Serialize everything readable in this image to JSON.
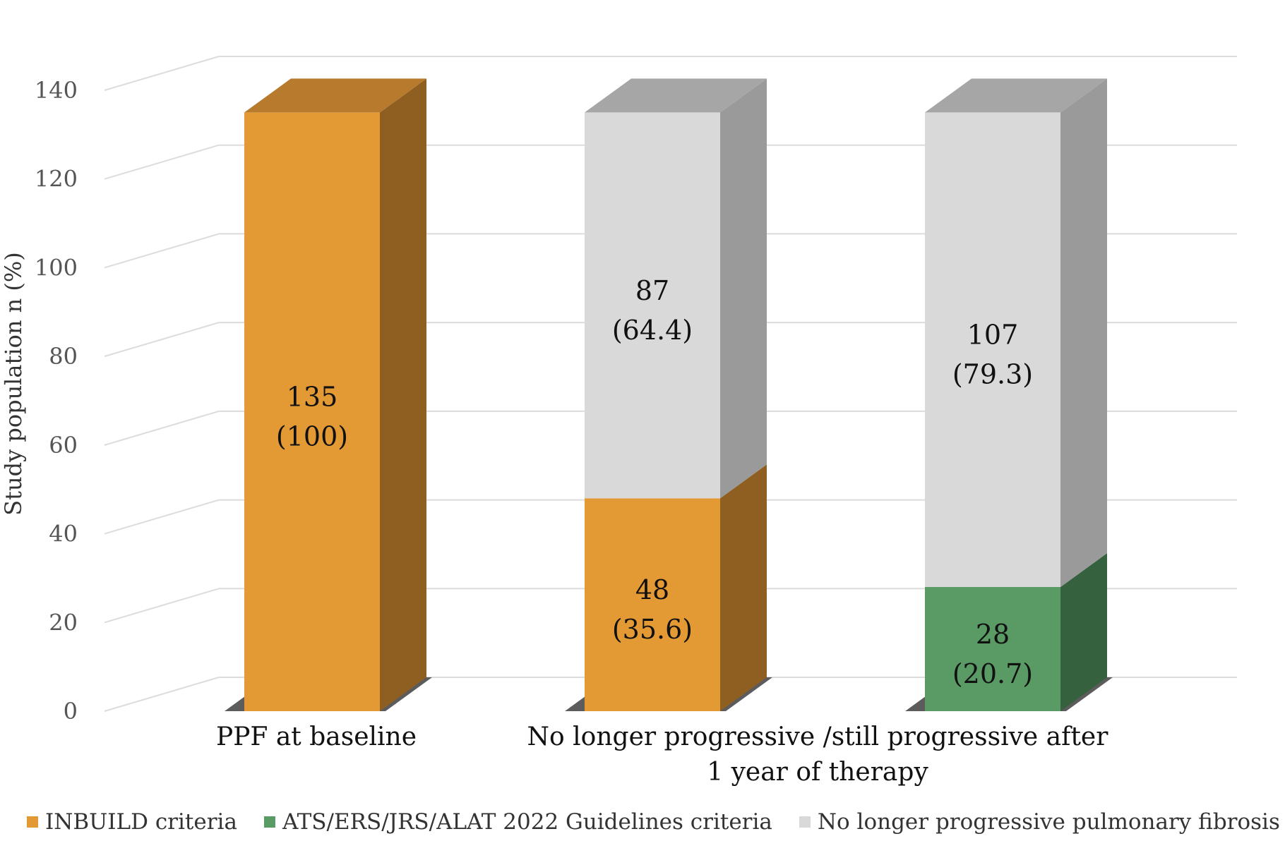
{
  "chart_data": {
    "type": "bar",
    "stacked": true,
    "three_d": true,
    "title": "",
    "ylabel": "Study population n (%)",
    "ylim": [
      0,
      140
    ],
    "yticks": [
      0,
      20,
      40,
      60,
      80,
      100,
      120,
      140
    ],
    "grid": true,
    "legend_position": "bottom",
    "categories": [
      {
        "label_lines": [
          "PPF at baseline"
        ]
      },
      {
        "label_lines": [
          "No longer progressive /still progressive after",
          "1 year of therapy"
        ]
      }
    ],
    "bars": [
      {
        "segments": [
          {
            "series": "INBUILD criteria",
            "value": 135,
            "label": "135",
            "percent_label": "(100)"
          }
        ]
      },
      {
        "segments": [
          {
            "series": "INBUILD criteria",
            "value": 48,
            "label": "48",
            "percent_label": "(35.6)"
          },
          {
            "series": "No longer progressive pulmonary fibrosis",
            "value": 87,
            "label": "87",
            "percent_label": "(64.4)"
          }
        ]
      },
      {
        "segments": [
          {
            "series": "ATS/ERS/JRS/ALAT 2022 Guidelines criteria",
            "value": 28,
            "label": "28",
            "percent_label": "(20.7)"
          },
          {
            "series": "No longer progressive pulmonary fibrosis",
            "value": 107,
            "label": "107",
            "percent_label": "(79.3)"
          }
        ]
      }
    ],
    "series": [
      {
        "name": "INBUILD criteria",
        "color": "#E39A35",
        "side_color": "#8F5F21",
        "top_color": "#B87A2C"
      },
      {
        "name": "ATS/ERS/JRS/ALAT 2022 Guidelines criteria",
        "color": "#5A9A65",
        "side_color": "#36613E",
        "top_color": "#C4D2C3"
      },
      {
        "name": "No longer progressive pulmonary fibrosis",
        "color": "#D9D9D9",
        "side_color": "#9A9A9A",
        "top_color": "#A6A6A6"
      }
    ]
  },
  "legend": {
    "items": [
      {
        "label": "INBUILD criteria",
        "color": "#E39A35"
      },
      {
        "label": "ATS/ERS/JRS/ALAT 2022 Guidelines criteria",
        "color": "#5A9A65"
      },
      {
        "label": "No longer progressive pulmonary fibrosis",
        "color": "#D9D9D9"
      }
    ]
  }
}
